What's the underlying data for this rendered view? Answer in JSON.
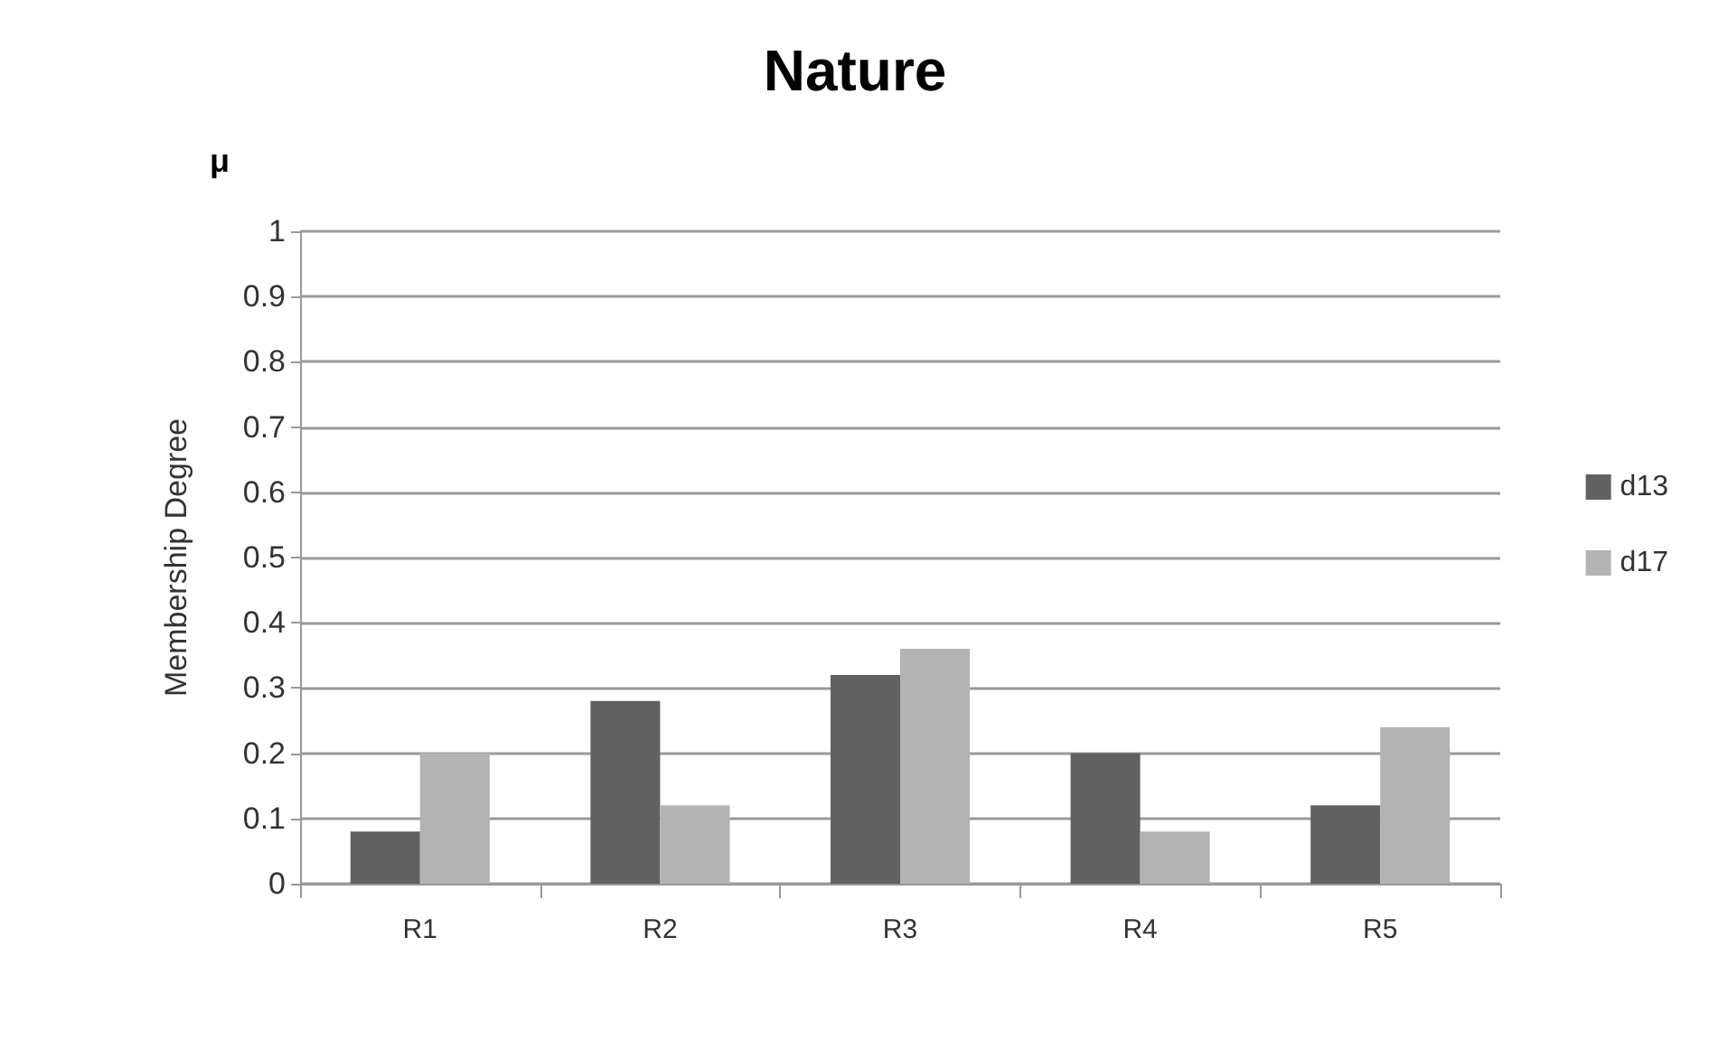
{
  "chart_data": {
    "type": "bar",
    "title": "Nature",
    "ylabel": "Membership Degree",
    "annotations": [
      "μ"
    ],
    "categories": [
      "R1",
      "R2",
      "R3",
      "R4",
      "R5"
    ],
    "series": [
      {
        "name": "d13",
        "color": "#616161",
        "values": [
          0.08,
          0.28,
          0.32,
          0.2,
          0.12
        ]
      },
      {
        "name": "d17",
        "color": "#b3b3b3",
        "values": [
          0.2,
          0.12,
          0.36,
          0.08,
          0.24
        ]
      }
    ],
    "ylim": [
      0,
      1
    ],
    "yticks": [
      0,
      0.1,
      0.2,
      0.3,
      0.4,
      0.5,
      0.6,
      0.7,
      0.8,
      0.9,
      1
    ],
    "grid": "y",
    "legend": "right"
  }
}
